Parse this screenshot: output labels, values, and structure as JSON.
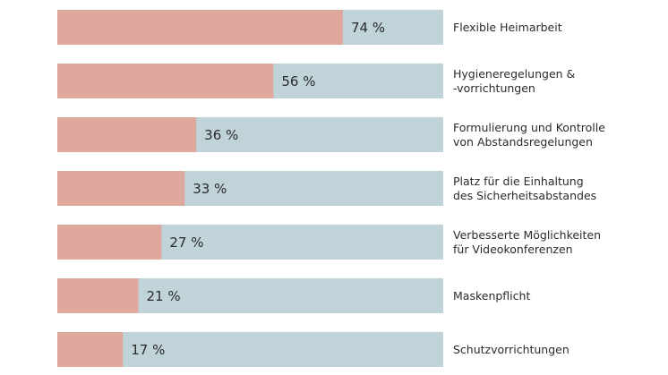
{
  "chart_data": {
    "type": "bar",
    "orientation": "horizontal",
    "categories": [
      "Flexible Heimarbeit",
      "Hygieneregelungen & -vorrichtungen",
      "Formulierung und Kontrolle von Abstandsregelungen",
      "Platz für die Einhaltung des Sicherheitsabstandes",
      "Verbesserte Möglichkeiten für Videokonferenzen",
      "Maskenpflicht",
      "Schutzvorrichtungen"
    ],
    "category_lines": [
      [
        "Flexible Heimarbeit"
      ],
      [
        "Hygieneregelungen &",
        "-vorrichtungen"
      ],
      [
        "Formulierung und Kontrolle",
        "von Abstandsregelungen"
      ],
      [
        "Platz für die Einhaltung",
        "des Sicherheitsabstandes"
      ],
      [
        "Verbesserte Möglichkeiten",
        "für Videokonferenzen"
      ],
      [
        "Maskenpflicht"
      ],
      [
        "Schutzvorrichtungen"
      ]
    ],
    "values": [
      74,
      56,
      36,
      33,
      27,
      21,
      17
    ],
    "value_labels": [
      "74 %",
      "56 %",
      "36 %",
      "33 %",
      "27 %",
      "21 %",
      "17 %"
    ],
    "unit": "%",
    "xlim": [
      0,
      100
    ],
    "title": "",
    "xlabel": "",
    "ylabel": "",
    "grid": false,
    "legend": "none",
    "colors": {
      "bar": "#dfa89d",
      "track": "#bfd3d9",
      "text": "#2b2b2b"
    }
  }
}
